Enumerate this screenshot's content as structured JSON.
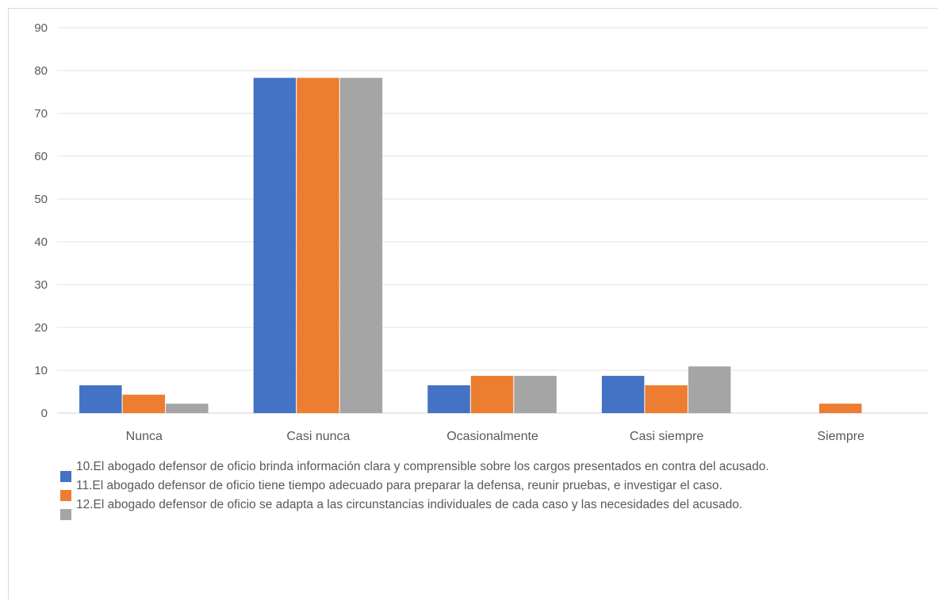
{
  "chart_data": {
    "type": "bar",
    "categories": [
      "Nunca",
      "Casi nunca",
      "Ocasionalmente",
      "Casi siempre",
      "Siempre"
    ],
    "yticks": [
      "0",
      "10",
      "20",
      "30",
      "40",
      "50",
      "60",
      "70",
      "80",
      "90"
    ],
    "ylim": [
      0,
      90
    ],
    "grid": true,
    "legend_position": "bottom",
    "series": [
      {
        "name": "10.El abogado defensor de oficio brinda información clara y comprensible sobre los cargos presentados en contra del acusado.",
        "color": "#4472c4",
        "values": [
          6.5,
          78.3,
          6.5,
          8.7,
          0
        ]
      },
      {
        "name": "11.El abogado defensor de oficio tiene tiempo adecuado para preparar la defensa, reunir pruebas, e investigar el caso.",
        "color": "#ed7d31",
        "values": [
          4.3,
          78.3,
          8.7,
          6.5,
          2.2
        ]
      },
      {
        "name": "12.El abogado defensor de oficio se adapta a las circunstancias individuales de cada caso y las necesidades del acusado.",
        "color": "#a5a5a5",
        "values": [
          2.2,
          78.3,
          8.7,
          10.9,
          0
        ]
      }
    ]
  }
}
